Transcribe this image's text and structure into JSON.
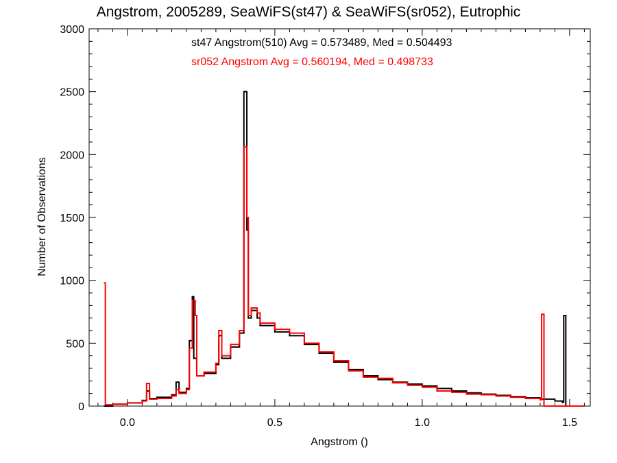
{
  "chart_data": {
    "type": "histogram",
    "title": "Angstrom, 2005289, SeaWiFS(st47) & SeaWiFS(sr052), Eutrophic",
    "xlabel": "Angstrom ()",
    "ylabel": "Number of Observations",
    "xlim": [
      -0.13,
      1.57
    ],
    "ylim": [
      0,
      3000
    ],
    "x_ticks": [
      0.0,
      0.5,
      1.0,
      1.5
    ],
    "x_tick_labels": [
      "0.0",
      "0.5",
      "1.0",
      "1.5"
    ],
    "y_ticks": [
      0,
      500,
      1000,
      1500,
      2000,
      2500,
      3000
    ],
    "y_tick_labels": [
      "0",
      "500",
      "1000",
      "1500",
      "2000",
      "2500",
      "3000"
    ],
    "annotations": [
      {
        "text": "st47 Angstrom(510) Avg = 0.573489, Med = 0.504493",
        "color": "#000000"
      },
      {
        "text": "sr052 Angstrom Avg = 0.560194, Med = 0.498733",
        "color": "#ff0000"
      }
    ],
    "series": [
      {
        "name": "st47",
        "color": "#000000",
        "points": [
          [
            -0.08,
            0
          ],
          [
            -0.05,
            15
          ],
          [
            0.0,
            25
          ],
          [
            0.05,
            45
          ],
          [
            0.065,
            120
          ],
          [
            0.075,
            60
          ],
          [
            0.1,
            70
          ],
          [
            0.15,
            90
          ],
          [
            0.165,
            190
          ],
          [
            0.175,
            110
          ],
          [
            0.2,
            140
          ],
          [
            0.21,
            520
          ],
          [
            0.22,
            870
          ],
          [
            0.225,
            380
          ],
          [
            0.235,
            240
          ],
          [
            0.26,
            260
          ],
          [
            0.3,
            330
          ],
          [
            0.31,
            560
          ],
          [
            0.32,
            380
          ],
          [
            0.35,
            470
          ],
          [
            0.38,
            580
          ],
          [
            0.395,
            2500
          ],
          [
            0.405,
            1400
          ],
          [
            0.41,
            700
          ],
          [
            0.42,
            760
          ],
          [
            0.44,
            700
          ],
          [
            0.45,
            640
          ],
          [
            0.5,
            590
          ],
          [
            0.55,
            560
          ],
          [
            0.6,
            490
          ],
          [
            0.65,
            420
          ],
          [
            0.7,
            350
          ],
          [
            0.75,
            290
          ],
          [
            0.8,
            240
          ],
          [
            0.85,
            210
          ],
          [
            0.9,
            190
          ],
          [
            0.95,
            175
          ],
          [
            1.0,
            160
          ],
          [
            1.05,
            140
          ],
          [
            1.1,
            120
          ],
          [
            1.15,
            105
          ],
          [
            1.2,
            95
          ],
          [
            1.25,
            85
          ],
          [
            1.3,
            75
          ],
          [
            1.35,
            65
          ],
          [
            1.4,
            55
          ],
          [
            1.45,
            40
          ],
          [
            1.475,
            30
          ],
          [
            1.48,
            720
          ],
          [
            1.487,
            0
          ],
          [
            1.55,
            0
          ]
        ]
      },
      {
        "name": "sr052",
        "color": "#ff0000",
        "points": [
          [
            -0.08,
            980
          ],
          [
            -0.075,
            10
          ],
          [
            -0.05,
            15
          ],
          [
            0.0,
            25
          ],
          [
            0.05,
            40
          ],
          [
            0.065,
            180
          ],
          [
            0.075,
            55
          ],
          [
            0.1,
            60
          ],
          [
            0.15,
            80
          ],
          [
            0.165,
            130
          ],
          [
            0.175,
            100
          ],
          [
            0.2,
            130
          ],
          [
            0.21,
            460
          ],
          [
            0.22,
            840
          ],
          [
            0.23,
            720
          ],
          [
            0.235,
            240
          ],
          [
            0.26,
            270
          ],
          [
            0.3,
            340
          ],
          [
            0.31,
            600
          ],
          [
            0.32,
            400
          ],
          [
            0.35,
            490
          ],
          [
            0.38,
            600
          ],
          [
            0.395,
            2060
          ],
          [
            0.405,
            1500
          ],
          [
            0.41,
            720
          ],
          [
            0.42,
            780
          ],
          [
            0.44,
            740
          ],
          [
            0.45,
            660
          ],
          [
            0.5,
            610
          ],
          [
            0.55,
            580
          ],
          [
            0.6,
            500
          ],
          [
            0.65,
            430
          ],
          [
            0.7,
            360
          ],
          [
            0.75,
            280
          ],
          [
            0.8,
            230
          ],
          [
            0.85,
            220
          ],
          [
            0.9,
            185
          ],
          [
            0.95,
            165
          ],
          [
            1.0,
            150
          ],
          [
            1.05,
            120
          ],
          [
            1.1,
            110
          ],
          [
            1.15,
            95
          ],
          [
            1.2,
            90
          ],
          [
            1.25,
            80
          ],
          [
            1.3,
            70
          ],
          [
            1.35,
            60
          ],
          [
            1.4,
            50
          ],
          [
            1.405,
            730
          ],
          [
            1.413,
            0
          ],
          [
            1.55,
            0
          ]
        ]
      }
    ]
  }
}
